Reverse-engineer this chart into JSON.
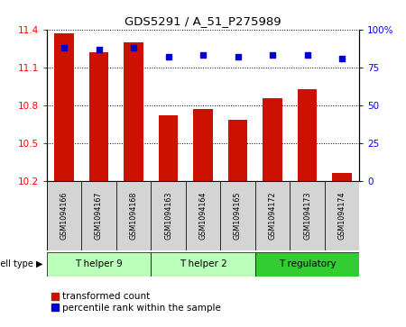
{
  "title": "GDS5291 / A_51_P275989",
  "samples": [
    "GSM1094166",
    "GSM1094167",
    "GSM1094168",
    "GSM1094163",
    "GSM1094164",
    "GSM1094165",
    "GSM1094172",
    "GSM1094173",
    "GSM1094174"
  ],
  "bar_values": [
    11.37,
    11.22,
    11.3,
    10.72,
    10.77,
    10.69,
    10.86,
    10.93,
    10.27
  ],
  "percentile_values": [
    88,
    87,
    88,
    82,
    83,
    82,
    83,
    83,
    81
  ],
  "ylim_left": [
    10.2,
    11.4
  ],
  "ylim_right": [
    0,
    100
  ],
  "yticks_left": [
    10.2,
    10.5,
    10.8,
    11.1,
    11.4
  ],
  "yticks_right": [
    0,
    25,
    50,
    75,
    100
  ],
  "bar_color": "#cc1100",
  "percentile_color": "#0000cc",
  "background_color": "#ffffff",
  "cell_types": [
    {
      "label": "T helper 9",
      "start": 0,
      "end": 3,
      "color": "#bbffbb"
    },
    {
      "label": "T helper 2",
      "start": 3,
      "end": 6,
      "color": "#bbffbb"
    },
    {
      "label": "T regulatory",
      "start": 6,
      "end": 9,
      "color": "#33cc33"
    }
  ],
  "legend_bar_label": "transformed count",
  "legend_pct_label": "percentile rank within the sample",
  "cell_type_label": "cell type"
}
